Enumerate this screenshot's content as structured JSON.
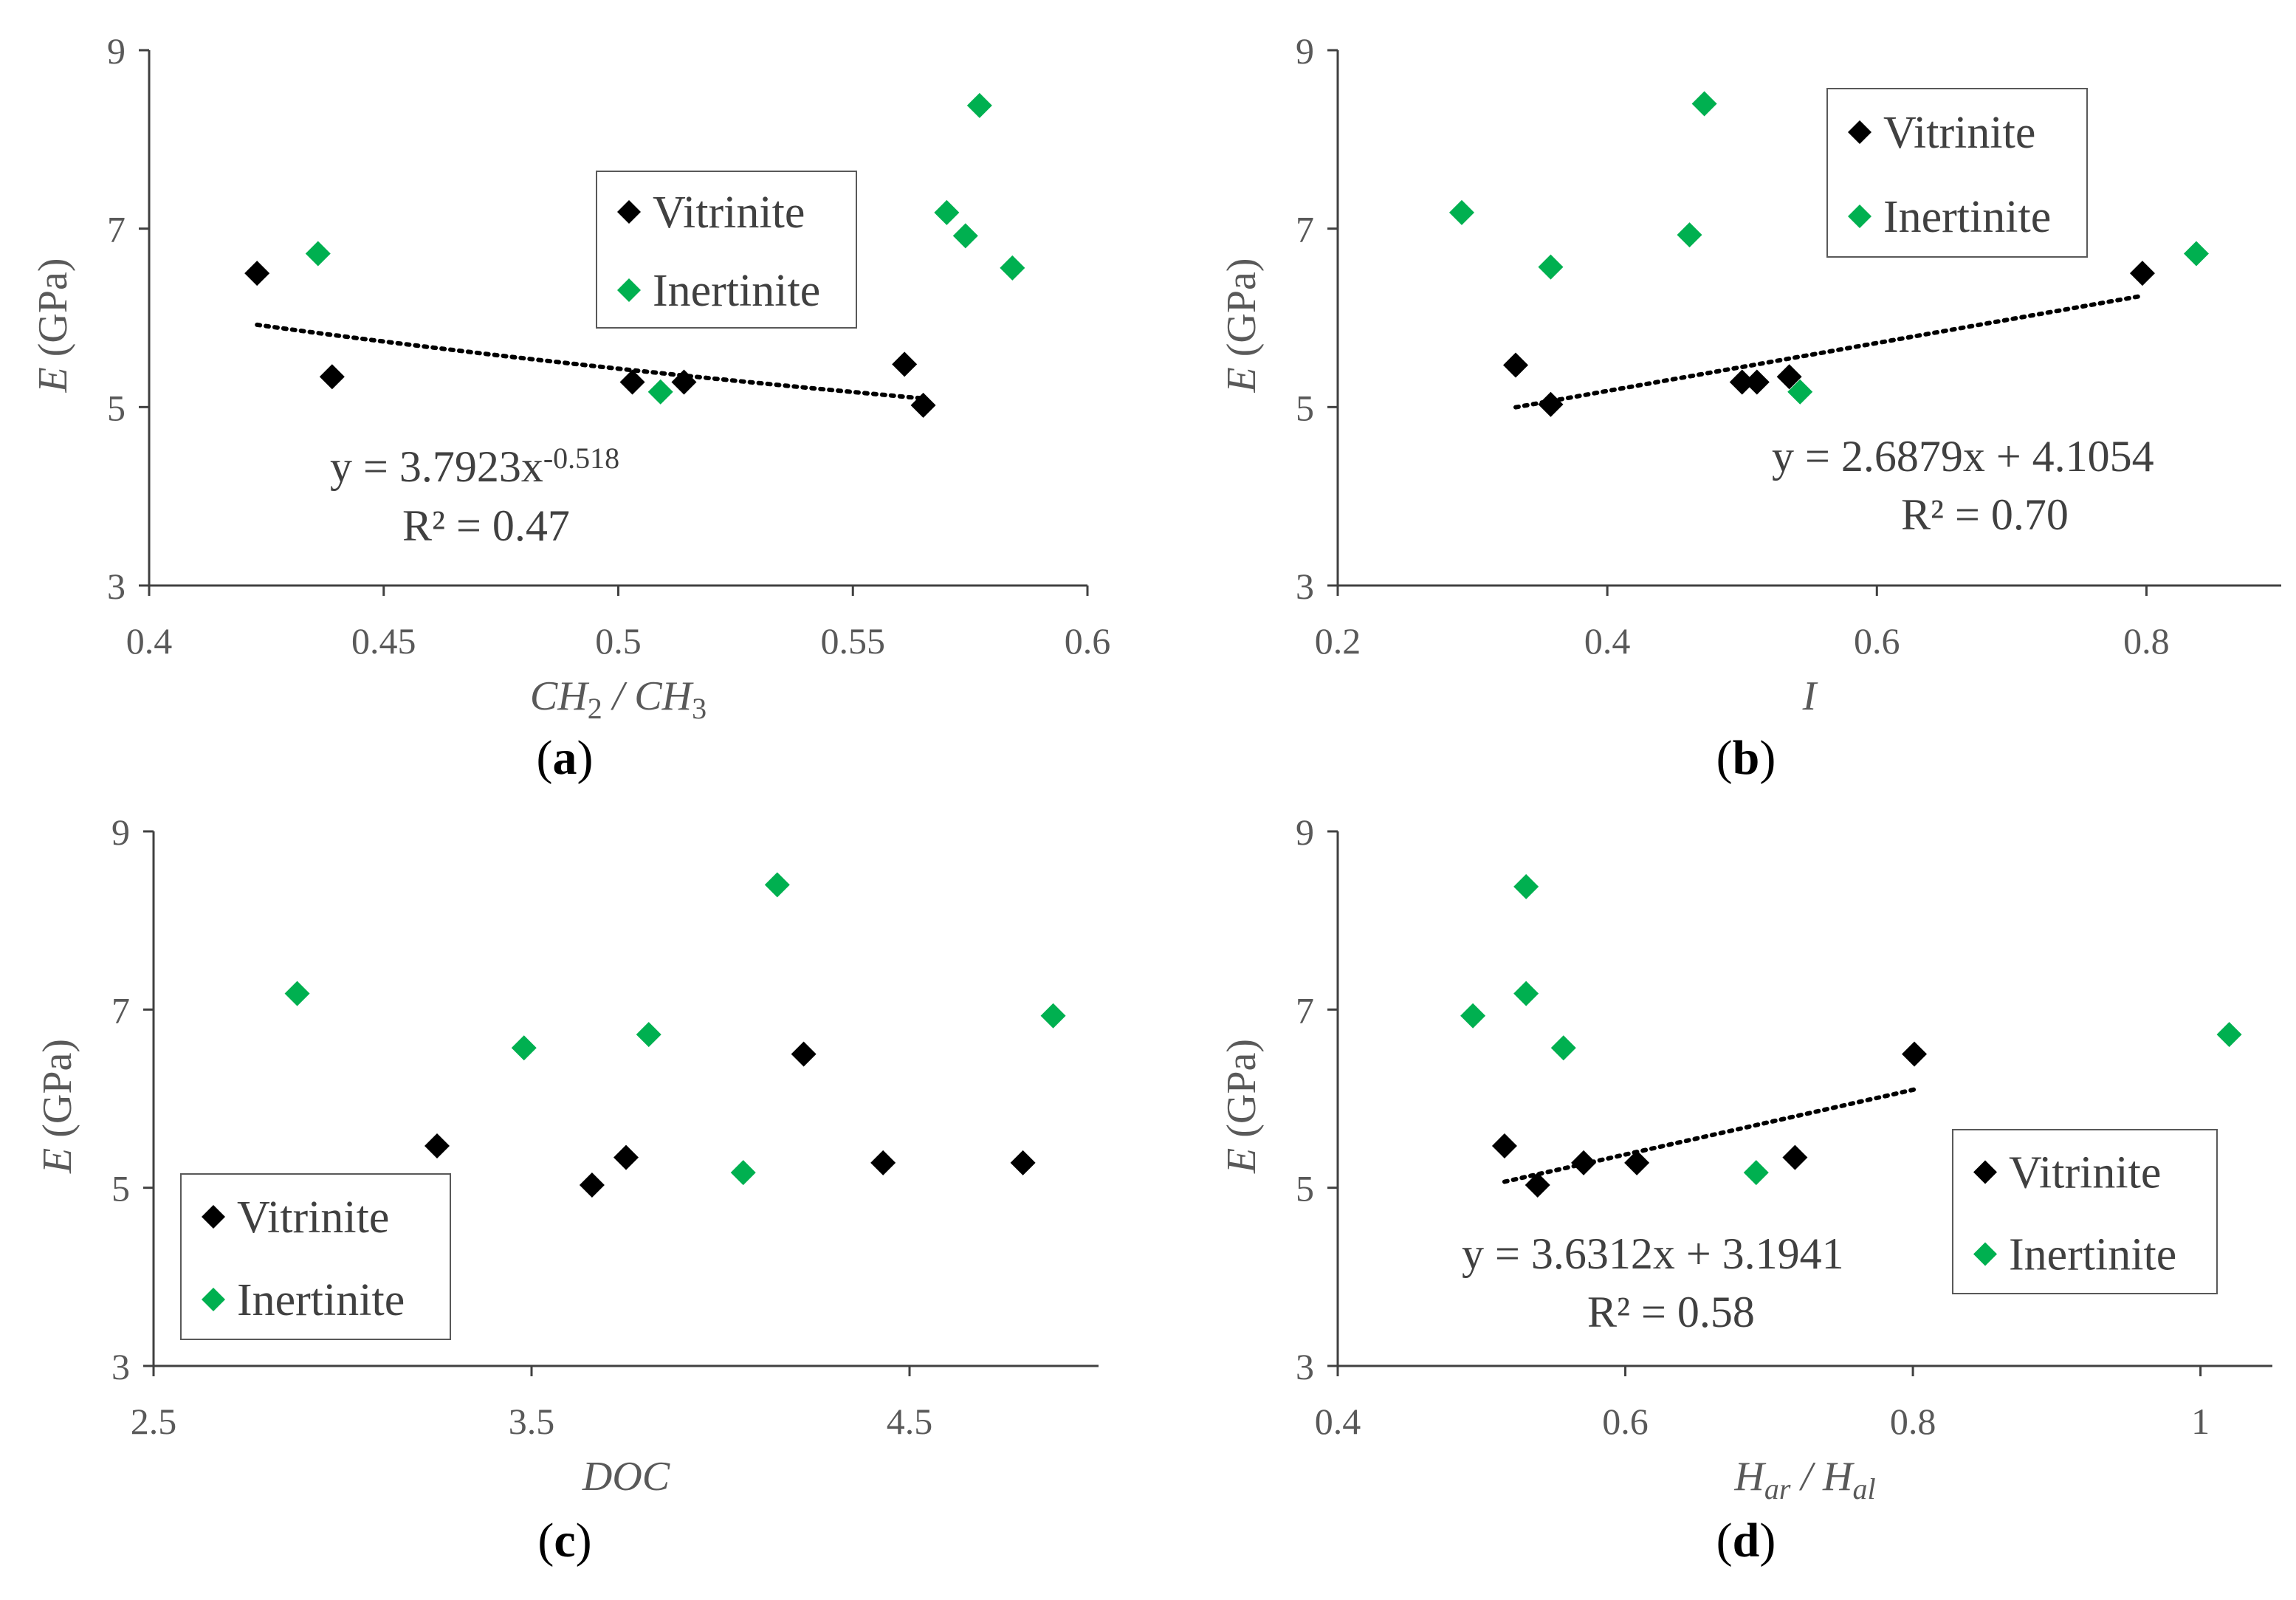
{
  "colors": {
    "vitrinite": "#000000",
    "inertinite": "#00b050",
    "axis": "#404040",
    "text": "#595959",
    "trendline": "#000000"
  },
  "legend_labels": {
    "vitrinite": "Vitrinite",
    "inertinite": "Inertinite"
  },
  "chart_data": [
    {
      "id": "a",
      "type": "scatter",
      "caption_letter": "a",
      "xlabel": {
        "parts": [
          {
            "t": "CH",
            "i": true
          },
          {
            "t": "2",
            "sub": true
          },
          {
            "t": " / ",
            "i": true
          },
          {
            "t": "CH",
            "i": true
          },
          {
            "t": "3",
            "sub": true
          }
        ]
      },
      "ylabel": {
        "parts": [
          {
            "t": "E",
            "i": true
          },
          {
            "t": " (GPa)"
          }
        ]
      },
      "xlim": [
        0.4,
        0.6
      ],
      "xticks": [
        0.4,
        0.45,
        0.5,
        0.55,
        0.6
      ],
      "xtick_labels": [
        "0.4",
        "0.45",
        "0.5",
        "0.55",
        "0.6"
      ],
      "ylim": [
        3,
        9
      ],
      "yticks": [
        3,
        5,
        7,
        9
      ],
      "ytick_labels": [
        "3",
        "5",
        "7",
        "9"
      ],
      "legend_position": "top-center",
      "series": [
        {
          "name": "Vitrinite",
          "points": [
            [
              0.423,
              6.5
            ],
            [
              0.439,
              5.34
            ],
            [
              0.503,
              5.28
            ],
            [
              0.514,
              5.28
            ],
            [
              0.561,
              5.48
            ],
            [
              0.565,
              5.02
            ]
          ]
        },
        {
          "name": "Inertinite",
          "points": [
            [
              0.436,
              6.72
            ],
            [
              0.509,
              5.17
            ],
            [
              0.57,
              7.18
            ],
            [
              0.574,
              6.92
            ],
            [
              0.577,
              8.38
            ],
            [
              0.584,
              6.56
            ]
          ]
        }
      ],
      "trendline": {
        "type": "power",
        "a": 3.7923,
        "b": -0.518,
        "x_range": [
          0.423,
          0.565
        ]
      },
      "equation": {
        "prefix": "y = 3.7923x",
        "superscript": "-0.518",
        "r2": "R² = 0.47"
      }
    },
    {
      "id": "b",
      "type": "scatter",
      "caption_letter": "b",
      "xlabel": {
        "parts": [
          {
            "t": "I",
            "i": true
          }
        ]
      },
      "ylabel": {
        "parts": [
          {
            "t": "E",
            "i": true
          },
          {
            "t": " (GPa)"
          }
        ]
      },
      "xlim": [
        0.2,
        0.9
      ],
      "xticks": [
        0.2,
        0.4,
        0.6,
        0.8
      ],
      "xtick_labels": [
        "0.2",
        "0.4",
        "0.6",
        "0.8"
      ],
      "ylim": [
        3,
        9
      ],
      "yticks": [
        3,
        5,
        7,
        9
      ],
      "ytick_labels": [
        "3",
        "5",
        "7",
        "9"
      ],
      "legend_position": "top-right",
      "series": [
        {
          "name": "Vitrinite",
          "points": [
            [
              0.332,
              5.47
            ],
            [
              0.358,
              5.03
            ],
            [
              0.5,
              5.28
            ],
            [
              0.511,
              5.28
            ],
            [
              0.535,
              5.34
            ],
            [
              0.797,
              6.5
            ]
          ]
        },
        {
          "name": "Inertinite",
          "points": [
            [
              0.292,
              7.18
            ],
            [
              0.358,
              6.57
            ],
            [
              0.461,
              6.93
            ],
            [
              0.472,
              8.4
            ],
            [
              0.543,
              5.17
            ],
            [
              0.837,
              6.72
            ]
          ]
        }
      ],
      "trendline": {
        "type": "linear",
        "m": 2.6879,
        "c": 4.1054,
        "x_range": [
          0.332,
          0.797
        ]
      },
      "equation": {
        "prefix": "y = 2.6879x + 4.1054",
        "superscript": "",
        "r2": "R² = 0.70"
      }
    },
    {
      "id": "c",
      "type": "scatter",
      "caption_letter": "c",
      "xlabel": {
        "parts": [
          {
            "t": "DOC",
            "i": true
          }
        ]
      },
      "ylabel": {
        "parts": [
          {
            "t": "E",
            "i": true
          },
          {
            "t": " (GPa)"
          }
        ]
      },
      "xlim": [
        2.5,
        5
      ],
      "xticks": [
        2.5,
        3.5,
        4.5
      ],
      "xtick_labels": [
        "2.5",
        "3.5",
        "4.5"
      ],
      "ylim": [
        3,
        9
      ],
      "yticks": [
        3,
        5,
        7,
        9
      ],
      "ytick_labels": [
        "3",
        "5",
        "7",
        "9"
      ],
      "legend_position": "bottom-left",
      "series": [
        {
          "name": "Vitrinite",
          "points": [
            [
              3.25,
              5.47
            ],
            [
              3.66,
              5.03
            ],
            [
              3.75,
              5.34
            ],
            [
              4.22,
              6.5
            ],
            [
              4.43,
              5.28
            ],
            [
              4.8,
              5.28
            ]
          ]
        },
        {
          "name": "Inertinite",
          "points": [
            [
              2.88,
              7.18
            ],
            [
              3.48,
              6.57
            ],
            [
              3.81,
              6.72
            ],
            [
              4.06,
              5.17
            ],
            [
              4.15,
              8.4
            ],
            [
              4.88,
              6.93
            ]
          ]
        }
      ],
      "trendline": null,
      "equation": null
    },
    {
      "id": "d",
      "type": "scatter",
      "caption_letter": "d",
      "xlabel": {
        "parts": [
          {
            "t": "H",
            "i": true
          },
          {
            "t": "ar",
            "sub": true,
            "i": true
          },
          {
            "t": " / ",
            "i": true
          },
          {
            "t": "H",
            "i": true
          },
          {
            "t": "al",
            "sub": true,
            "i": true
          }
        ]
      },
      "ylabel": {
        "parts": [
          {
            "t": "E",
            "i": true
          },
          {
            "t": " (GPa)"
          }
        ]
      },
      "xlim": [
        0.4,
        1.05
      ],
      "xticks": [
        0.4,
        0.6,
        0.8,
        1.0
      ],
      "xtick_labels": [
        "0.4",
        "0.6",
        "0.8",
        "1"
      ],
      "ylim": [
        3,
        9
      ],
      "yticks": [
        3,
        5,
        7,
        9
      ],
      "ytick_labels": [
        "3",
        "5",
        "7",
        "9"
      ],
      "legend_position": "bottom-right",
      "series": [
        {
          "name": "Vitrinite",
          "points": [
            [
              0.516,
              5.47
            ],
            [
              0.539,
              5.03
            ],
            [
              0.571,
              5.28
            ],
            [
              0.608,
              5.28
            ],
            [
              0.718,
              5.34
            ],
            [
              0.801,
              6.5
            ]
          ]
        },
        {
          "name": "Inertinite",
          "points": [
            [
              0.494,
              6.93
            ],
            [
              0.531,
              8.38
            ],
            [
              0.531,
              7.18
            ],
            [
              0.557,
              6.57
            ],
            [
              0.691,
              5.17
            ],
            [
              1.02,
              6.72
            ]
          ]
        }
      ],
      "trendline": {
        "type": "linear",
        "m": 3.6312,
        "c": 3.1941,
        "x_range": [
          0.516,
          0.801
        ]
      },
      "equation": {
        "prefix": "y = 3.6312x + 3.1941",
        "superscript": "",
        "r2": "R² = 0.58"
      }
    }
  ]
}
